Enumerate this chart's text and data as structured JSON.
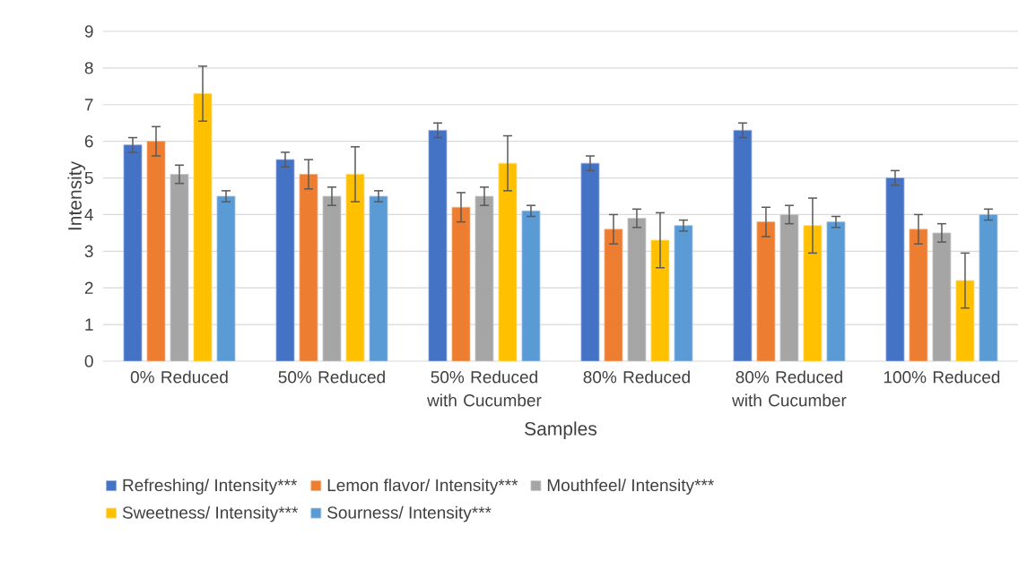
{
  "chart_data": {
    "type": "bar",
    "xlabel": "Samples",
    "ylabel": "Intensity",
    "categories": [
      "0% Reduced",
      "50% Reduced",
      "50% Reduced with Cucumber",
      "80% Reduced",
      "80% Reduced with Cucumber",
      "100% Reduced"
    ],
    "series": [
      {
        "name": "Refreshing/ Intensity***",
        "color": "#4472c4",
        "values": [
          5.9,
          5.5,
          6.3,
          5.4,
          6.3,
          5.0
        ],
        "errors": [
          0.2,
          0.2,
          0.2,
          0.2,
          0.2,
          0.2
        ]
      },
      {
        "name": "Lemon flavor/ Intensity***",
        "color": "#ed7d31",
        "values": [
          6.0,
          5.1,
          4.2,
          3.6,
          3.8,
          3.6
        ],
        "errors": [
          0.4,
          0.4,
          0.4,
          0.4,
          0.4,
          0.4
        ]
      },
      {
        "name": "Mouthfeel/ Intensity***",
        "color": "#a5a5a5",
        "values": [
          5.1,
          4.5,
          4.5,
          3.9,
          4.0,
          3.5
        ],
        "errors": [
          0.25,
          0.25,
          0.25,
          0.25,
          0.25,
          0.25
        ]
      },
      {
        "name": "Sweetness/ Intensity***",
        "color": "#ffc000",
        "values": [
          7.3,
          5.1,
          5.4,
          3.3,
          3.7,
          2.2
        ],
        "errors": [
          0.75,
          0.75,
          0.75,
          0.75,
          0.75,
          0.75
        ]
      },
      {
        "name": "Sourness/ Intensity***",
        "color": "#5b9bd5",
        "values": [
          4.5,
          4.5,
          4.1,
          3.7,
          3.8,
          4.0
        ],
        "errors": [
          0.15,
          0.15,
          0.15,
          0.15,
          0.15,
          0.15
        ]
      }
    ],
    "ylim": [
      0,
      9
    ],
    "yticks": [
      0,
      1,
      2,
      3,
      4,
      5,
      6,
      7,
      8,
      9
    ],
    "grid": "y",
    "legend": "bottom"
  }
}
